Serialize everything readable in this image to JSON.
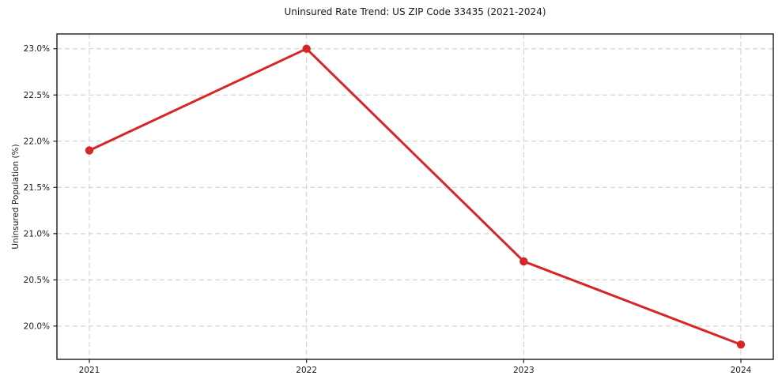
{
  "page": {
    "title": "Uninsured Rate Trend: US ZIP Code 33435 (2021-2024)"
  },
  "chart_data": {
    "type": "line",
    "title": "Uninsured Rate Trend: US ZIP Code 33435 (2021-2024)",
    "xlabel": "",
    "ylabel": "Uninsured Population (%)",
    "categories": [
      "2021",
      "2022",
      "2023",
      "2024"
    ],
    "series": [
      {
        "name": "Uninsured Rate",
        "values": [
          21.9,
          23.0,
          20.7,
          19.8
        ]
      }
    ],
    "y_ticks": [
      20.0,
      20.5,
      21.0,
      21.5,
      22.0,
      22.5,
      23.0
    ],
    "y_tick_labels": [
      "20.0%",
      "20.5%",
      "21.0%",
      "21.5%",
      "22.0%",
      "22.5%",
      "23.0%"
    ],
    "ylim": [
      19.64,
      23.16
    ],
    "grid": true,
    "grid_style": "dashed",
    "legend": "none",
    "colors": {
      "line": "#d62728",
      "marker": "#d62728",
      "grid": "#cccccc",
      "spine": "#1a1a1a",
      "background": "#ffffff"
    }
  }
}
